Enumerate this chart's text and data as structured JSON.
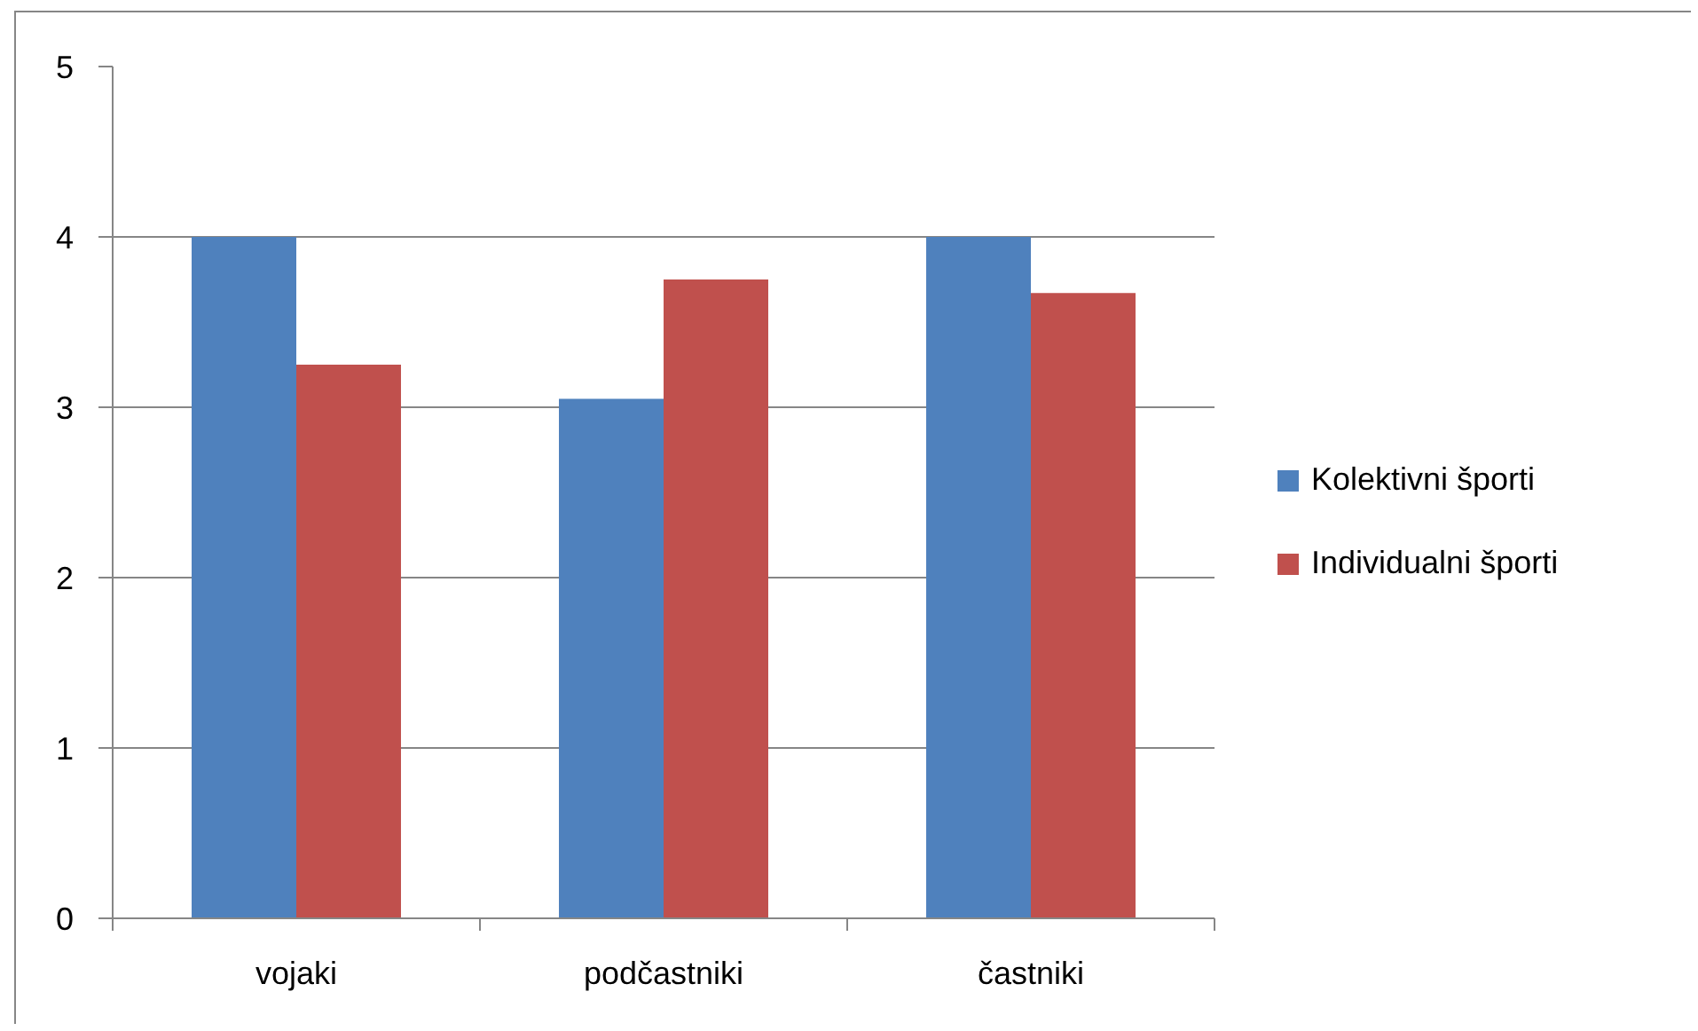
{
  "chart_data": {
    "type": "bar",
    "categories": [
      "vojaki",
      "podčastniki",
      "častniki"
    ],
    "series": [
      {
        "name": "Kolektivni športi",
        "color": "#4f81bd",
        "values": [
          4,
          3.05,
          4
        ]
      },
      {
        "name": "Individualni športi",
        "color": "#c0504d",
        "values": [
          3.25,
          3.75,
          3.67
        ]
      }
    ],
    "ylim": [
      0,
      5
    ],
    "yticks": [
      0,
      1,
      2,
      3,
      4,
      5
    ],
    "grid": "y",
    "legend": "right"
  }
}
